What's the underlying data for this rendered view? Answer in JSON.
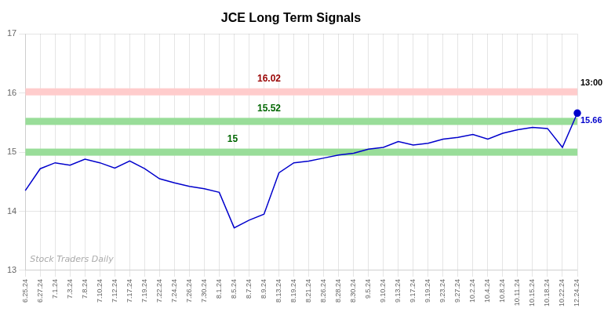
{
  "chart_data": {
    "type": "line",
    "title": "JCE Long Term Signals",
    "categories": [
      "6.25.24",
      "6.27.24",
      "7.1.24",
      "7.3.24",
      "7.8.24",
      "7.10.24",
      "7.12.24",
      "7.17.24",
      "7.19.24",
      "7.22.24",
      "7.24.24",
      "7.26.24",
      "7.30.24",
      "8.1.24",
      "8.5.24",
      "8.7.24",
      "8.9.24",
      "8.13.24",
      "8.19.24",
      "8.21.24",
      "8.26.24",
      "8.28.24",
      "8.30.24",
      "9.5.24",
      "9.10.24",
      "9.13.24",
      "9.17.24",
      "9.19.24",
      "9.23.24",
      "9.27.24",
      "10.2.24",
      "10.4.24",
      "10.8.24",
      "10.11.24",
      "10.15.24",
      "10.18.24",
      "10.22.24",
      "12.24.24"
    ],
    "values": [
      14.35,
      14.72,
      14.82,
      14.78,
      14.88,
      14.82,
      14.73,
      14.85,
      14.72,
      14.55,
      14.48,
      14.42,
      14.38,
      14.32,
      13.72,
      13.85,
      13.95,
      14.65,
      14.82,
      14.85,
      14.9,
      14.95,
      14.98,
      15.05,
      15.08,
      15.18,
      15.12,
      15.15,
      15.22,
      15.25,
      15.3,
      15.22,
      15.32,
      15.38,
      15.42,
      15.4,
      15.08,
      15.66
    ],
    "color": "#0000cc",
    "ylim": [
      13.0,
      17.0
    ],
    "yticks": [
      13,
      14,
      15,
      16,
      17
    ],
    "grid": true,
    "hlines": [
      {
        "y": 16.02,
        "color": "#ffcccc",
        "label": "16.02",
        "label_color": "#990000"
      },
      {
        "y": 15.52,
        "color": "#99dd99",
        "label": "15.52",
        "label_color": "#006600"
      },
      {
        "y": 15.0,
        "color": "#99dd99",
        "label": "15",
        "label_color": "#006600"
      }
    ],
    "last_point": {
      "label": "15.66",
      "time": "13:00",
      "color": "#0000cc",
      "time_color": "#000000"
    },
    "watermark": "Stock Traders Daily"
  }
}
